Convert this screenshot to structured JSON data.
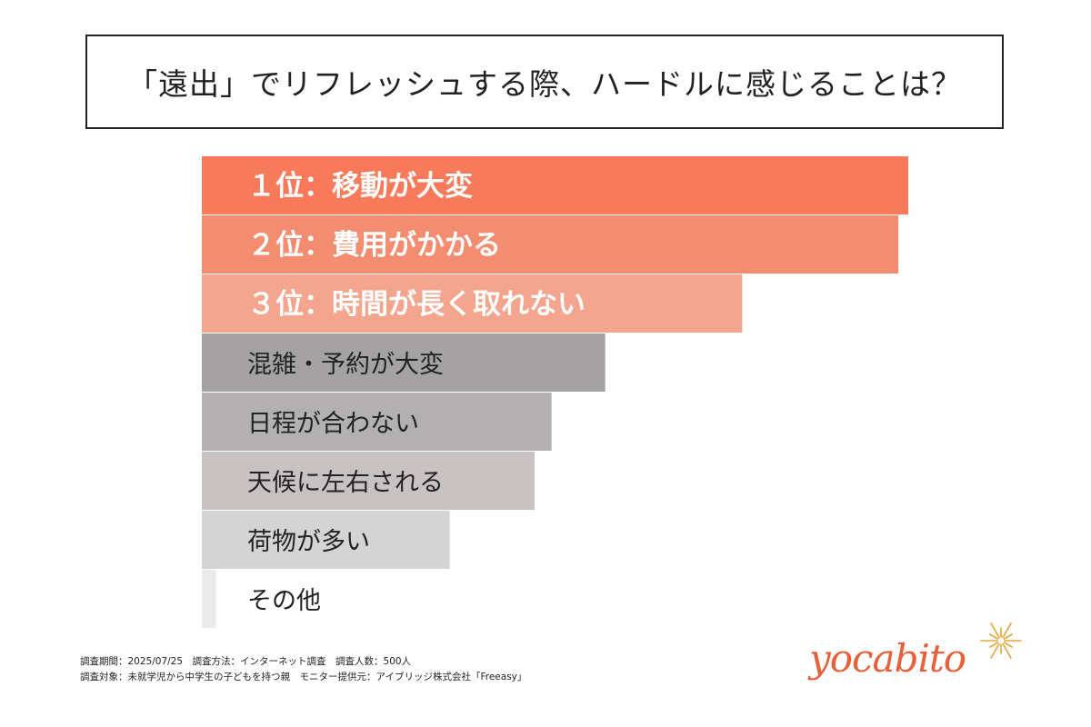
{
  "title": "「遠出」でリフレッシュする際、ハードルに感じることは？",
  "chart_data": {
    "type": "bar",
    "orientation": "horizontal",
    "categories": [
      "１位：移動が大変",
      "２位：費用がかかる",
      "３位：時間が長く取れない",
      "混雑・予約が大変",
      "日程が合わない",
      "天候に左右される",
      "荷物が多い",
      "その他"
    ],
    "values": [
      100,
      98.6,
      76.5,
      57.1,
      49.5,
      47.1,
      35.1,
      2.0
    ],
    "colors": [
      "#f77b5a",
      "#f48c6f",
      "#f4a58d",
      "#a4a2a3",
      "#b2b0b1",
      "#c8c2c2",
      "#d4d4d4",
      "#eaeaea"
    ],
    "title": "「遠出」でリフレッシュする際、ハードルに感じることは？",
    "xlabel": "",
    "ylabel": "",
    "xlim": [
      0,
      100
    ],
    "grid": false
  },
  "footer": {
    "line1": "調査期間：2025/07/25　調査方法：インターネット調査　調査人数：500人",
    "line2": "調査対象：未就学児から中学生の子どもを持つ親　モニター提供元：アイブリッジ株式会社「Freeasy」"
  },
  "logo": {
    "text": "yocabito",
    "color": "#e85f39",
    "star_color": "#e8a33a"
  }
}
